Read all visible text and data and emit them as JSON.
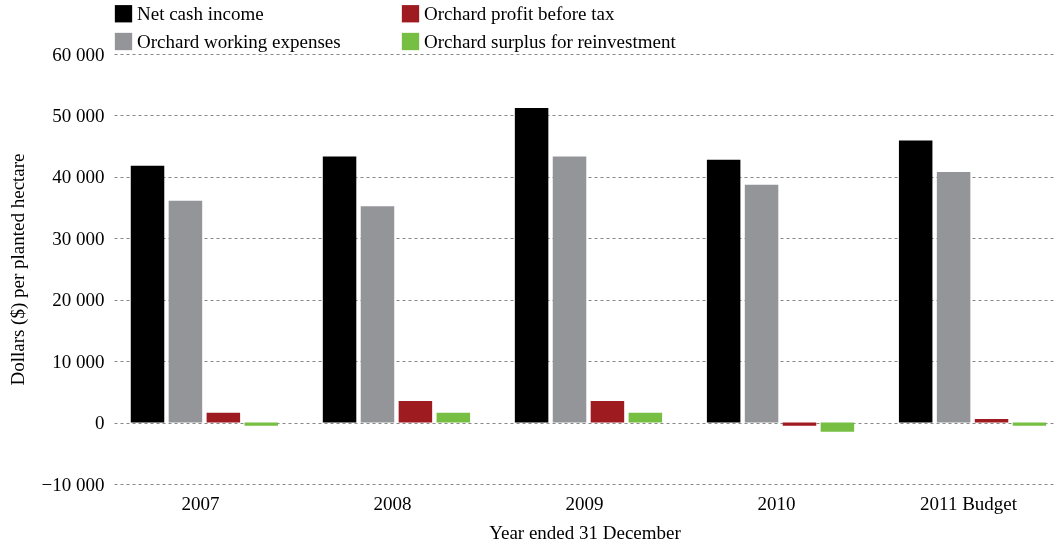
{
  "chart_data": {
    "type": "bar",
    "xlabel": "Year ended 31 December",
    "ylabel": "Dollars ($) per planted hectare",
    "categories": [
      "2007",
      "2008",
      "2009",
      "2010",
      "2011 Budget"
    ],
    "series": [
      {
        "name": "Net cash income",
        "color": "#000000",
        "values": [
          41800,
          43300,
          51200,
          42800,
          45900
        ]
      },
      {
        "name": "Orchard working expenses",
        "color": "#939598",
        "values": [
          36100,
          35200,
          43300,
          38700,
          40800
        ]
      },
      {
        "name": "Orchard profit before tax",
        "color": "#9e1b20",
        "values": [
          1600,
          3500,
          3500,
          -500,
          600
        ]
      },
      {
        "name": "Orchard surplus for reinvestment",
        "color": "#76bf43",
        "values": [
          -500,
          1600,
          1600,
          -1500,
          -500
        ]
      }
    ],
    "ylim": [
      -10000,
      60000
    ],
    "yticks": [
      {
        "value": -10000,
        "label": "−10 000"
      },
      {
        "value": 0,
        "label": "0"
      },
      {
        "value": 10000,
        "label": "10 000"
      },
      {
        "value": 20000,
        "label": "20 000"
      },
      {
        "value": 30000,
        "label": "30 000"
      },
      {
        "value": 40000,
        "label": "40 000"
      },
      {
        "value": 50000,
        "label": "50 000"
      },
      {
        "value": 60000,
        "label": "60 000"
      }
    ],
    "grid": "y",
    "legend": "top"
  }
}
